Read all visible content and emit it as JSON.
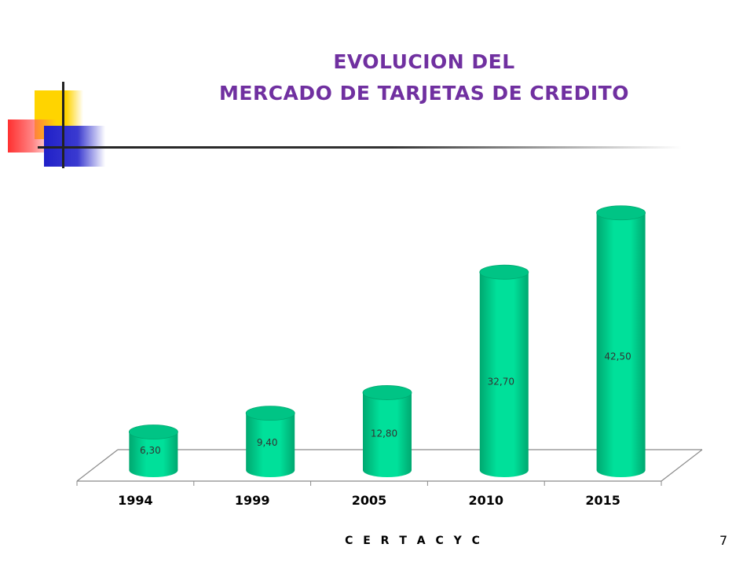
{
  "slide": {
    "title_line1": "EVOLUCION DEL",
    "title_line2": "MERCADO DE TARJETAS DE CREDITO",
    "footer": "C E R T A C Y C",
    "page_number": "7"
  },
  "colors": {
    "title": "#7030a0",
    "bar": "#00e09a",
    "bar_dark": "#00a870",
    "bar_top": "#00c485"
  },
  "chart_data": {
    "type": "bar",
    "title": "",
    "xlabel": "",
    "ylabel": "",
    "categories": [
      "1994",
      "1999",
      "2005",
      "2010",
      "2015"
    ],
    "values": [
      6.3,
      9.4,
      12.8,
      32.7,
      42.5
    ],
    "data_labels": [
      "6,30",
      "9,40",
      "12,80",
      "32,70",
      "42,50"
    ],
    "ylim": [
      0,
      50
    ],
    "grid": false,
    "legend": "none",
    "style": "3d-cylinder"
  }
}
